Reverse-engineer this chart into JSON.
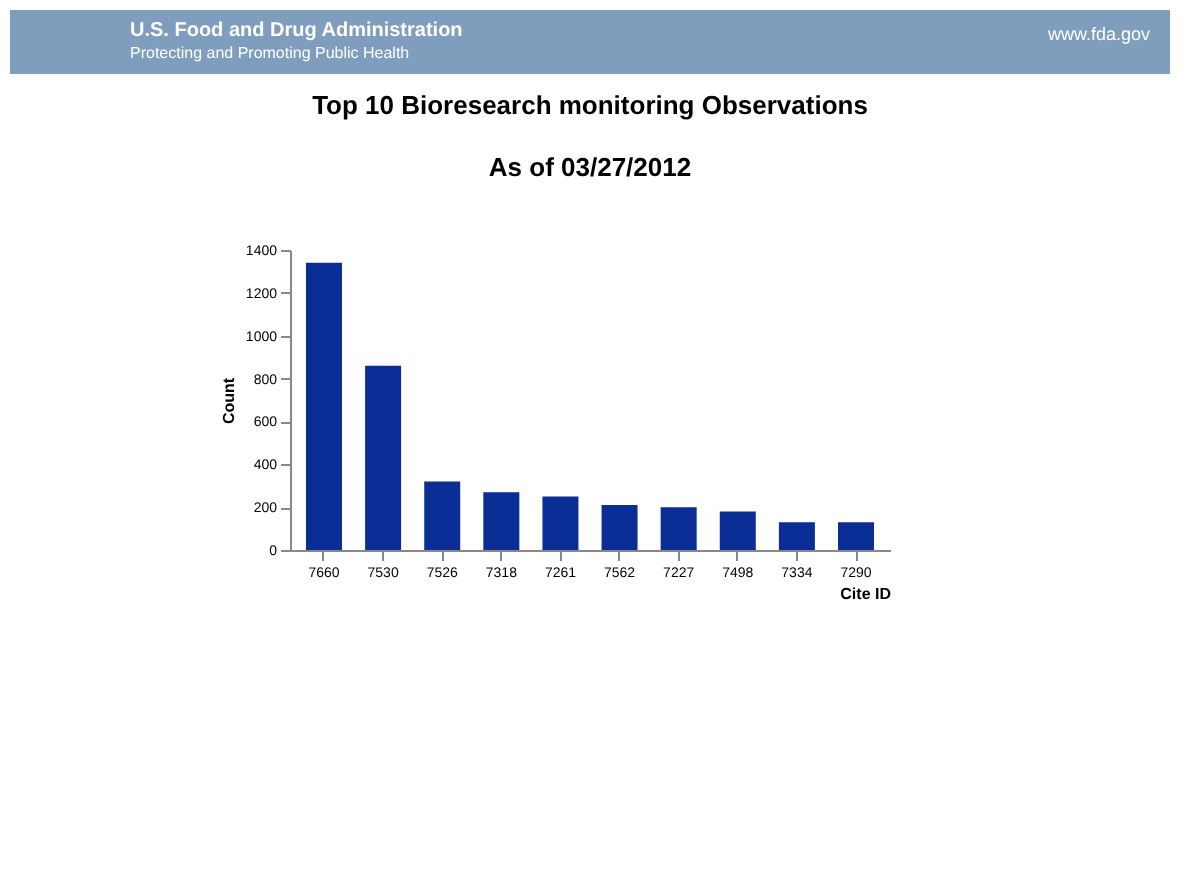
{
  "chart_data": {
    "type": "bar",
    "title": "Top 10 Bioresearch monitoring Observations",
    "subtitle": "As of 03/27/2012",
    "xlabel": "Cite ID",
    "ylabel": "Count",
    "categories": [
      "7660",
      "7530",
      "7526",
      "7318",
      "7261",
      "7562",
      "7227",
      "7498",
      "7334",
      "7290"
    ],
    "values": [
      1340,
      860,
      320,
      270,
      250,
      210,
      200,
      180,
      130,
      130
    ],
    "color": "#0a2e96",
    "ylim": [
      0,
      1400
    ],
    "yticks": [
      0,
      200,
      400,
      600,
      800,
      1000,
      1200,
      1400
    ],
    "grid": false,
    "annotations": [
      "U.S. Food and Drug Administration",
      "Protecting and Promoting Public Health",
      "www.fda.gov"
    ]
  }
}
